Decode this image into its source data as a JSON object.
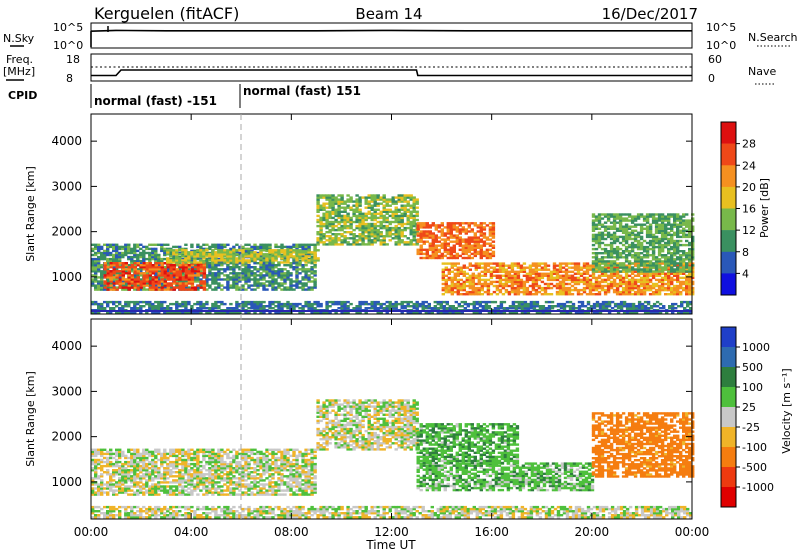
{
  "header": {
    "station": "Kerguelen (fitACF)",
    "beam": "Beam 14",
    "date": "16/Dec/2017"
  },
  "top_panel": {
    "nsky_label": "N.Sky",
    "nsky_ticks": [
      "10^5",
      "10^0"
    ],
    "nsearch_label": "N.Search",
    "nsearch_ticks": [
      "10^5",
      "10^0"
    ],
    "freq_label_1": "Freq.",
    "freq_label_2": "[MHz]",
    "freq_ticks": [
      "18",
      "8"
    ],
    "nave_label": "Nave",
    "nave_ticks": [
      "60",
      "0"
    ],
    "cpid_label": "CPID",
    "cpid_segments": [
      "normal (fast) -151",
      "normal (fast) 151"
    ]
  },
  "time_axis": {
    "label": "Time UT",
    "ticks": [
      "00:00",
      "04:00",
      "08:00",
      "12:00",
      "16:00",
      "20:00",
      "00:00"
    ]
  },
  "power_panel": {
    "ylabel": "Slant Range [km]",
    "yticks": [
      "1000",
      "2000",
      "3000",
      "4000"
    ],
    "colorbar_label": "Power [dB]",
    "colorbar_ticks": [
      "4",
      "8",
      "12",
      "16",
      "20",
      "24",
      "28"
    ],
    "colorbar_colors": [
      "#1010e0",
      "#2a58b8",
      "#3a9060",
      "#78b84a",
      "#e8c020",
      "#f59020",
      "#ef4818",
      "#dd1010"
    ]
  },
  "velocity_panel": {
    "ylabel": "Slant Range [km]",
    "yticks": [
      "1000",
      "2000",
      "3000",
      "4000"
    ],
    "colorbar_label": "Velocity [m s⁻¹]",
    "colorbar_ticks": [
      "1000",
      "500",
      "100",
      "25",
      "-25",
      "-100",
      "-500",
      "-1000"
    ],
    "colorbar_colors": [
      "#1f3fc8",
      "#2e6bb0",
      "#2e7e3e",
      "#4ec03c",
      "#c8c8c8",
      "#f0b428",
      "#f57d10",
      "#ee3a10",
      "#e00000"
    ]
  },
  "chart_data": [
    {
      "type": "line",
      "title": "Kerguelen (fitACF)",
      "series": [
        {
          "name": "N.Sky",
          "x_hours": [
            0,
            1,
            3,
            6,
            9,
            12,
            15,
            18,
            21,
            24
          ],
          "values_log10": [
            4.4,
            4.6,
            4.5,
            4.5,
            4.5,
            4.6,
            4.5,
            4.5,
            4.5,
            4.5
          ]
        },
        {
          "name": "Freq.",
          "x_hours": [
            0,
            1,
            1.2,
            13,
            13.05,
            24
          ],
          "values_mhz": [
            9.8,
            9.8,
            12.0,
            12.0,
            9.8,
            9.8
          ]
        },
        {
          "name": "Nave",
          "x_hours": [
            0,
            24
          ],
          "values": [
            23,
            23
          ]
        }
      ],
      "xlabel": "Time UT",
      "xlim_hours": [
        0,
        24
      ]
    },
    {
      "type": "heatmap",
      "title": "Power",
      "xlabel": "Time UT",
      "ylabel": "Slant Range [km]",
      "ylim": [
        180,
        4600
      ],
      "xlim_hours": [
        0,
        24
      ],
      "colorbar": "Power [dB]",
      "colorbar_range": [
        0,
        32
      ],
      "regions": [
        {
          "t0": 0.0,
          "t1": 9.0,
          "r0": 700,
          "r1": 1700,
          "level_db": 10
        },
        {
          "t0": 0.5,
          "t1": 4.5,
          "r0": 700,
          "r1": 1300,
          "level_db": 26
        },
        {
          "t0": 3.0,
          "t1": 9.0,
          "r0": 1300,
          "r1": 1600,
          "level_db": 16
        },
        {
          "t0": 9.0,
          "t1": 13.0,
          "r0": 1700,
          "r1": 2800,
          "level_db": 14
        },
        {
          "t0": 13.0,
          "t1": 16.0,
          "r0": 1400,
          "r1": 2200,
          "level_db": 24
        },
        {
          "t0": 14.0,
          "t1": 24.0,
          "r0": 600,
          "r1": 1300,
          "level_db": 22
        },
        {
          "t0": 20.0,
          "t1": 24.0,
          "r0": 1100,
          "r1": 2400,
          "level_db": 12
        },
        {
          "t0": 0.0,
          "t1": 24.0,
          "r0": 200,
          "r1": 450,
          "level_db": 8
        }
      ]
    },
    {
      "type": "heatmap",
      "title": "Velocity",
      "xlabel": "Time UT",
      "ylabel": "Slant Range [km]",
      "ylim": [
        180,
        4600
      ],
      "xlim_hours": [
        0,
        24
      ],
      "colorbar": "Velocity [m s⁻¹]",
      "colorbar_range": [
        -1000,
        1000
      ],
      "regions": [
        {
          "t0": 0.0,
          "t1": 9.0,
          "r0": 700,
          "r1": 1700,
          "velocity": 0
        },
        {
          "t0": 9.0,
          "t1": 13.0,
          "r0": 1700,
          "r1": 2800,
          "velocity": 0
        },
        {
          "t0": 13.0,
          "t1": 20.0,
          "r0": 800,
          "r1": 1400,
          "velocity": 60
        },
        {
          "t0": 13.0,
          "t1": 17.0,
          "r0": 1400,
          "r1": 2300,
          "velocity": 80
        },
        {
          "t0": 20.0,
          "t1": 24.0,
          "r0": 1100,
          "r1": 2500,
          "velocity": -150
        },
        {
          "t0": 0.0,
          "t1": 24.0,
          "r0": 200,
          "r1": 450,
          "velocity": 0
        }
      ]
    }
  ]
}
